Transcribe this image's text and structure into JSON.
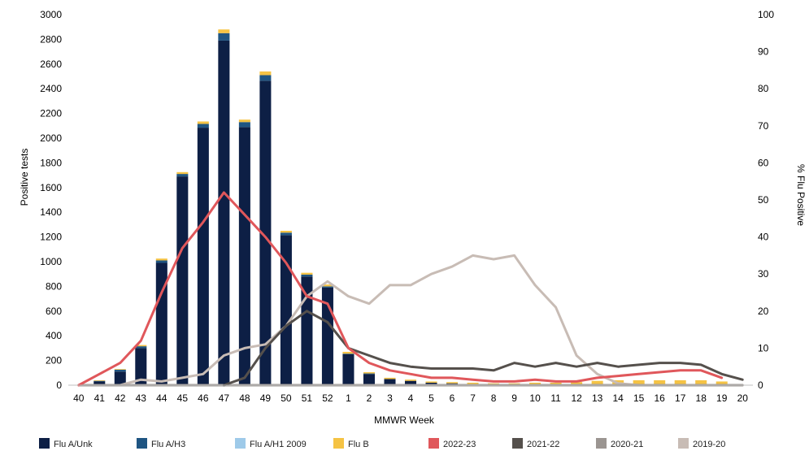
{
  "chart_data": {
    "type": "bar",
    "title": "",
    "xlabel": "MMWR Week",
    "ylabel": "Positive tests",
    "y2label": "% Flu Positive",
    "ylim": [
      0,
      3000
    ],
    "y2lim": [
      0,
      100
    ],
    "yticks": [
      0,
      200,
      400,
      600,
      800,
      1000,
      1200,
      1400,
      1600,
      1800,
      2000,
      2200,
      2400,
      2600,
      2800,
      3000
    ],
    "y2ticks": [
      0,
      10,
      20,
      30,
      40,
      50,
      60,
      70,
      80,
      90,
      100
    ],
    "categories": [
      "40",
      "41",
      "42",
      "43",
      "44",
      "45",
      "46",
      "47",
      "48",
      "49",
      "50",
      "51",
      "52",
      "1",
      "2",
      "3",
      "4",
      "5",
      "6",
      "7",
      "8",
      "9",
      "10",
      "11",
      "12",
      "13",
      "14",
      "15",
      "16",
      "17",
      "18",
      "19",
      "20"
    ],
    "grid": false,
    "legend_position": "bottom",
    "bar_series": [
      {
        "name": "Flu A/Unk",
        "color": "#0d1f45",
        "values": [
          0,
          30,
          110,
          300,
          990,
          1690,
          2085,
          2790,
          2090,
          2465,
          1215,
          880,
          790,
          250,
          90,
          50,
          35,
          20,
          15,
          10,
          5,
          5,
          5,
          5,
          5,
          10,
          10,
          10,
          10,
          10,
          10,
          5,
          0
        ]
      },
      {
        "name": "Flu A/H3",
        "color": "#1f5582",
        "values": [
          0,
          5,
          15,
          15,
          20,
          20,
          30,
          60,
          40,
          45,
          20,
          15,
          10,
          5,
          5,
          0,
          0,
          0,
          0,
          0,
          0,
          0,
          0,
          0,
          0,
          0,
          0,
          0,
          0,
          0,
          0,
          0,
          0
        ]
      },
      {
        "name": "Flu A/H1 2009",
        "color": "#9ecae9",
        "values": [
          0,
          0,
          0,
          0,
          0,
          0,
          0,
          0,
          0,
          0,
          0,
          0,
          0,
          0,
          0,
          0,
          0,
          0,
          0,
          0,
          0,
          0,
          0,
          0,
          0,
          0,
          0,
          0,
          0,
          0,
          0,
          0,
          0
        ]
      },
      {
        "name": "Flu B",
        "color": "#f5c344",
        "values": [
          0,
          5,
          5,
          10,
          15,
          15,
          20,
          30,
          20,
          30,
          15,
          15,
          15,
          15,
          10,
          10,
          10,
          10,
          10,
          10,
          10,
          10,
          15,
          15,
          20,
          25,
          30,
          30,
          30,
          30,
          30,
          25,
          0
        ]
      }
    ],
    "line_series": [
      {
        "name": "2022-23",
        "color": "#e0575b",
        "values": [
          0,
          3,
          6,
          12,
          25,
          37,
          44,
          52,
          46,
          40,
          33,
          24,
          22,
          10,
          6,
          4,
          3,
          2,
          2,
          1.5,
          1,
          1,
          1.5,
          1,
          1,
          2,
          2.5,
          3,
          3.5,
          4,
          4,
          2,
          null
        ]
      },
      {
        "name": "2021-22",
        "color": "#55504c",
        "values": [
          null,
          null,
          null,
          null,
          null,
          null,
          null,
          0,
          2,
          10,
          16,
          20,
          17,
          10,
          8,
          6,
          5,
          4.5,
          4.5,
          4.5,
          4,
          6,
          5,
          6,
          5,
          6,
          5,
          5.5,
          6,
          6,
          5.5,
          3,
          1.5
        ]
      },
      {
        "name": "2020-21",
        "color": "#9b9591",
        "values": [
          0,
          0,
          0,
          0,
          0,
          0,
          0,
          0,
          0,
          0,
          0,
          0,
          0,
          0,
          0,
          0,
          0,
          0,
          0,
          0,
          0,
          0,
          0,
          0,
          0,
          0,
          0,
          0,
          0,
          0,
          0,
          0,
          0
        ]
      },
      {
        "name": "2019-20",
        "color": "#c8bcb5",
        "values": [
          0,
          0,
          0,
          1.5,
          1,
          2,
          3,
          8,
          10,
          11,
          16,
          24,
          28,
          24,
          22,
          27,
          27,
          30,
          32,
          35,
          34,
          35,
          27,
          21,
          8,
          3,
          0.5,
          0,
          0,
          0,
          0,
          0,
          0
        ]
      }
    ]
  }
}
